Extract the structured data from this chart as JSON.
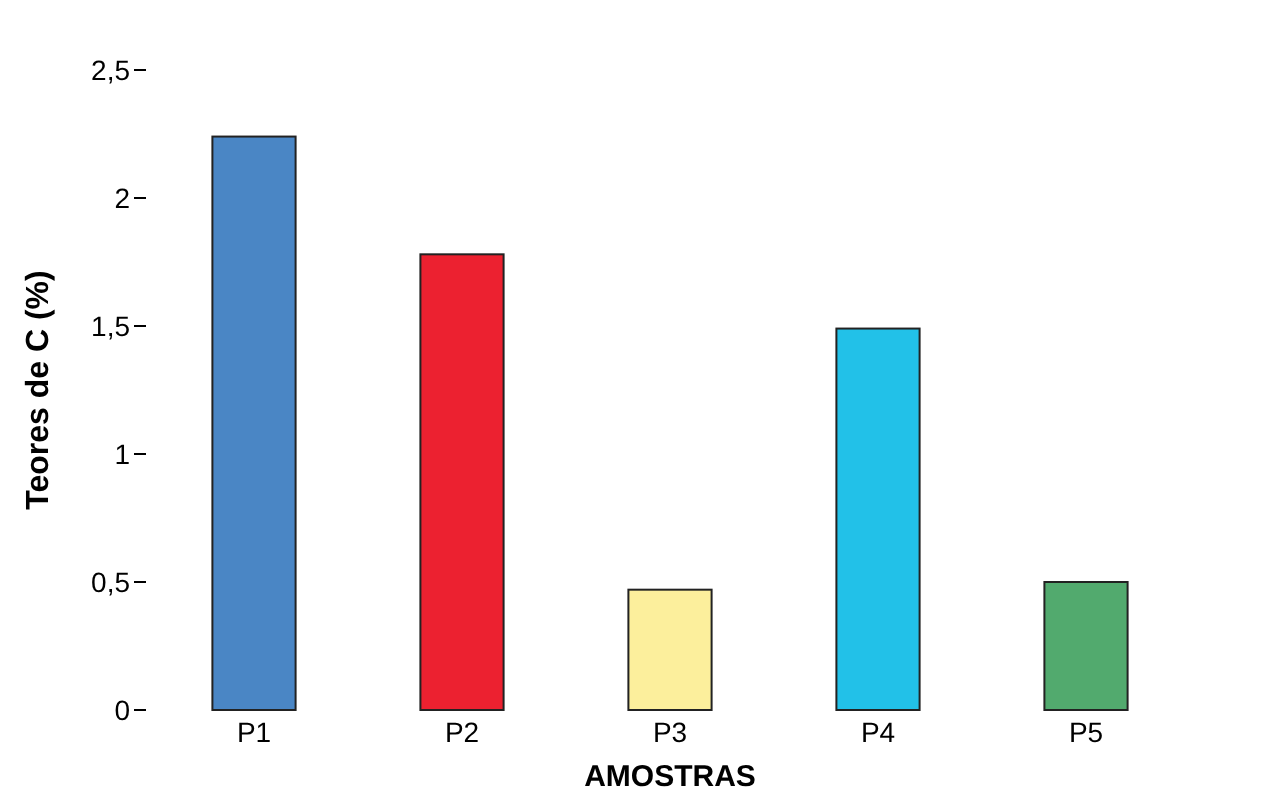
{
  "chart_data": {
    "type": "bar",
    "xlabel": "AMOSTRAS",
    "ylabel": "Teores de C (%)",
    "categories": [
      "P1",
      "P2",
      "P3",
      "P4",
      "P5"
    ],
    "values": [
      2.24,
      1.78,
      0.47,
      1.49,
      0.5
    ],
    "colors": [
      "#4a86c5",
      "#ec2130",
      "#fcef9c",
      "#22c1e8",
      "#52aa6e"
    ],
    "ylim": [
      0,
      2.5
    ],
    "yticks": [
      0,
      {
        "value": 0.5,
        "label": "0,5"
      },
      1,
      {
        "value": 1.5,
        "label": "1,5"
      },
      2,
      {
        "value": 2.5,
        "label": "2,5"
      }
    ],
    "grid": false
  }
}
